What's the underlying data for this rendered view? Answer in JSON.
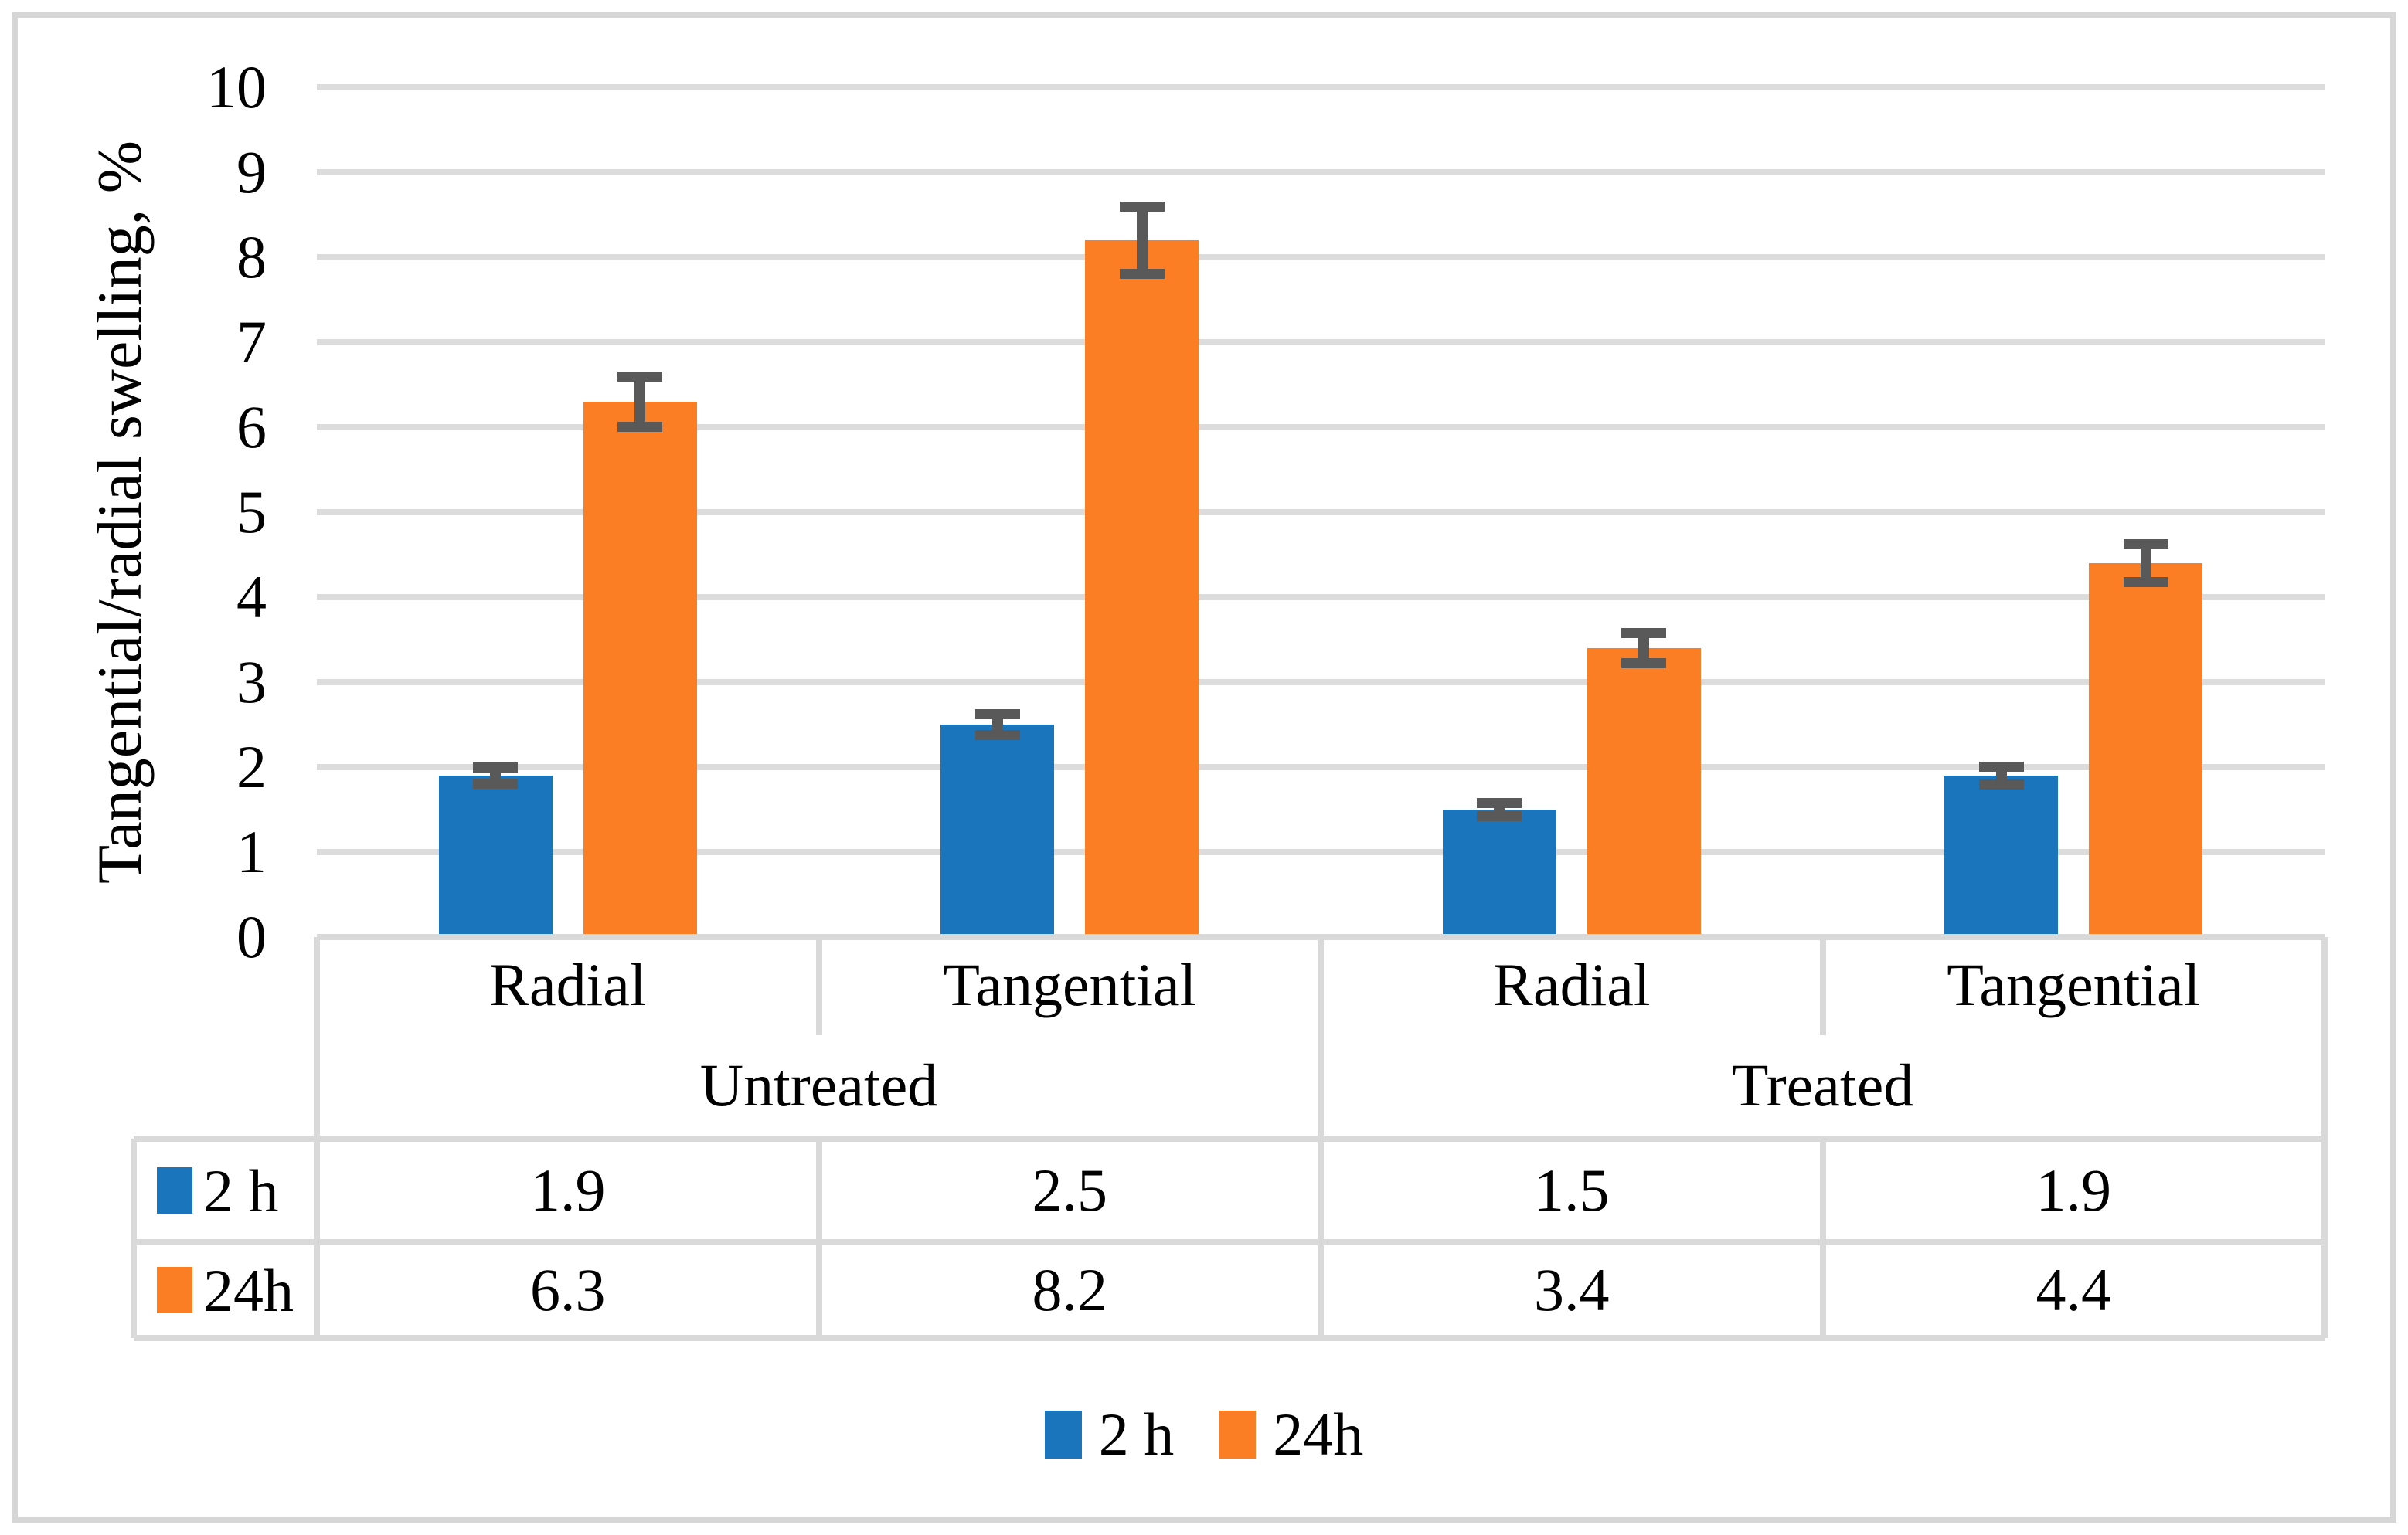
{
  "chart_data": {
    "type": "bar",
    "title": "",
    "ylabel": "Tangential/radial swelling, %",
    "xlabel": "",
    "ylim": [
      0,
      10
    ],
    "ytick_step": 1,
    "yticks": [
      0,
      1,
      2,
      3,
      4,
      5,
      6,
      7,
      8,
      9,
      10
    ],
    "grid": true,
    "legend_position": "bottom",
    "group_labels": [
      "Untreated",
      "Treated"
    ],
    "categories": [
      "Radial",
      "Tangential",
      "Radial",
      "Tangential"
    ],
    "category_group_index": [
      0,
      0,
      1,
      1
    ],
    "series": [
      {
        "name": "2 h",
        "color": "#1B75BC",
        "values": [
          1.9,
          2.5,
          1.5,
          1.9
        ],
        "errors": [
          0.1,
          0.13,
          0.08,
          0.11
        ]
      },
      {
        "name": "24h",
        "color": "#FB7D24",
        "values": [
          6.3,
          8.2,
          3.4,
          4.4
        ],
        "errors": [
          0.3,
          0.4,
          0.18,
          0.23
        ]
      }
    ],
    "data_table": {
      "row_labels": [
        "2 h",
        "24h"
      ],
      "rows": [
        [
          "1.9",
          "2.5",
          "1.5",
          "1.9"
        ],
        [
          "6.3",
          "8.2",
          "3.4",
          "4.4"
        ]
      ]
    },
    "legend": [
      "2 h",
      "24h"
    ],
    "colors": {
      "error_bar": "#595959",
      "gridline": "#DCDCDC",
      "table_border": "#D9D9D9",
      "figure_border": "#D6D6D6",
      "text": "#000000",
      "background": "#FFFFFF"
    }
  }
}
